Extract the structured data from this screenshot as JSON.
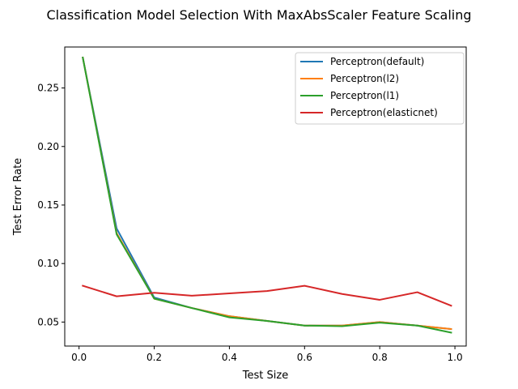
{
  "chart_data": {
    "type": "line",
    "title": "Classification Model Selection With MaxAbsScaler Feature Scaling",
    "xlabel": "Test Size",
    "ylabel": "Test Error Rate",
    "xlim": [
      -0.038,
      1.03
    ],
    "ylim": [
      0.0295,
      0.285
    ],
    "xticks": [
      0.0,
      0.2,
      0.4,
      0.6,
      0.8,
      1.0
    ],
    "xtick_labels": [
      "0.0",
      "0.2",
      "0.4",
      "0.6",
      "0.8",
      "1.0"
    ],
    "yticks": [
      0.05,
      0.1,
      0.15,
      0.2,
      0.25
    ],
    "ytick_labels": [
      "0.05",
      "0.10",
      "0.15",
      "0.20",
      "0.25"
    ],
    "grid": false,
    "legend_position": "top-right",
    "x": [
      0.01,
      0.1,
      0.2,
      0.3,
      0.4,
      0.5,
      0.6,
      0.7,
      0.8,
      0.9,
      0.99
    ],
    "series": [
      {
        "name": "Perceptron(default)",
        "color": "#1f77b4",
        "values": [
          0.276,
          0.13,
          0.071,
          0.062,
          0.055,
          0.051,
          0.047,
          0.047,
          0.05,
          0.047,
          0.044
        ]
      },
      {
        "name": "Perceptron(l2)",
        "color": "#ff7f0e",
        "values": [
          0.276,
          0.126,
          0.07,
          0.062,
          0.055,
          0.051,
          0.047,
          0.047,
          0.05,
          0.047,
          0.044
        ]
      },
      {
        "name": "Perceptron(l1)",
        "color": "#2ca02c",
        "values": [
          0.276,
          0.125,
          0.07,
          0.062,
          0.054,
          0.051,
          0.047,
          0.0465,
          0.0495,
          0.047,
          0.041
        ]
      },
      {
        "name": "Perceptron(elasticnet)",
        "color": "#d62728",
        "values": [
          0.081,
          0.072,
          0.075,
          0.0725,
          0.0745,
          0.0765,
          0.081,
          0.074,
          0.069,
          0.0755,
          0.064
        ]
      }
    ]
  }
}
